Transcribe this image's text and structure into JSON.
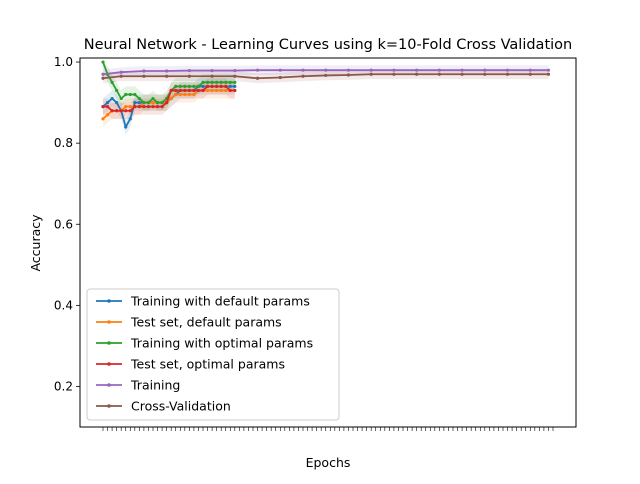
{
  "chart_data": {
    "type": "line",
    "title": "Neural Network - Learning Curves using k=10-Fold Cross Validation",
    "xlabel": "Epochs",
    "ylabel": "Accuracy",
    "xlim": [
      0,
      100
    ],
    "ylim": [
      0.1,
      1.01
    ],
    "yticks": [
      0.2,
      0.4,
      0.6,
      0.8,
      1.0
    ],
    "ytick_labels": [
      "0.2",
      "0.4",
      "0.6",
      "0.8",
      "1.0"
    ],
    "grid": false,
    "legend_position": "lower-left",
    "series": [
      {
        "name": "Training with default params",
        "color": "#1f77b4",
        "x": [
          1,
          2,
          3,
          4,
          5,
          6,
          7,
          8,
          9,
          10,
          11,
          12,
          13,
          14,
          15,
          16,
          17,
          18,
          19,
          20,
          21,
          22,
          23,
          24,
          25,
          26,
          27,
          28,
          29,
          30
        ],
        "y": [
          0.89,
          0.9,
          0.91,
          0.9,
          0.88,
          0.84,
          0.86,
          0.9,
          0.9,
          0.9,
          0.9,
          0.9,
          0.9,
          0.9,
          0.9,
          0.91,
          0.92,
          0.93,
          0.93,
          0.93,
          0.93,
          0.94,
          0.94,
          0.94,
          0.94,
          0.94,
          0.94,
          0.94,
          0.94,
          0.94
        ]
      },
      {
        "name": "Test set, default params",
        "color": "#ff7f0e",
        "x": [
          1,
          2,
          3,
          4,
          5,
          6,
          7,
          8,
          9,
          10,
          11,
          12,
          13,
          14,
          15,
          16,
          17,
          18,
          19,
          20,
          21,
          22,
          23,
          24,
          25,
          26,
          27,
          28,
          29,
          30
        ],
        "y": [
          0.86,
          0.87,
          0.88,
          0.88,
          0.88,
          0.89,
          0.89,
          0.89,
          0.89,
          0.9,
          0.9,
          0.9,
          0.9,
          0.9,
          0.9,
          0.91,
          0.92,
          0.92,
          0.92,
          0.92,
          0.92,
          0.93,
          0.93,
          0.93,
          0.93,
          0.93,
          0.93,
          0.93,
          0.93,
          0.93
        ]
      },
      {
        "name": "Training with optimal params",
        "color": "#2ca02c",
        "x": [
          1,
          2,
          3,
          4,
          5,
          6,
          7,
          8,
          9,
          10,
          11,
          12,
          13,
          14,
          15,
          16,
          17,
          18,
          19,
          20,
          21,
          22,
          23,
          24,
          25,
          26,
          27,
          28,
          29,
          30
        ],
        "y": [
          1.0,
          0.97,
          0.95,
          0.93,
          0.91,
          0.92,
          0.92,
          0.92,
          0.91,
          0.9,
          0.9,
          0.91,
          0.9,
          0.9,
          0.91,
          0.93,
          0.94,
          0.94,
          0.94,
          0.94,
          0.94,
          0.94,
          0.95,
          0.95,
          0.95,
          0.95,
          0.95,
          0.95,
          0.95,
          0.95
        ]
      },
      {
        "name": "Test set, optimal params",
        "color": "#d62728",
        "x": [
          1,
          2,
          3,
          4,
          5,
          6,
          7,
          8,
          9,
          10,
          11,
          12,
          13,
          14,
          15,
          16,
          17,
          18,
          19,
          20,
          21,
          22,
          23,
          24,
          25,
          26,
          27,
          28,
          29,
          30
        ],
        "y": [
          0.89,
          0.89,
          0.88,
          0.88,
          0.88,
          0.88,
          0.88,
          0.89,
          0.89,
          0.89,
          0.89,
          0.89,
          0.89,
          0.89,
          0.9,
          0.93,
          0.93,
          0.93,
          0.93,
          0.93,
          0.93,
          0.93,
          0.93,
          0.94,
          0.94,
          0.94,
          0.94,
          0.94,
          0.93,
          0.93
        ]
      },
      {
        "name": "Training",
        "color": "#9467bd",
        "x": [
          1,
          5,
          10,
          15,
          20,
          25,
          30,
          35,
          40,
          45,
          50,
          55,
          60,
          65,
          70,
          75,
          80,
          85,
          90,
          95,
          99
        ],
        "y": [
          0.97,
          0.975,
          0.978,
          0.978,
          0.979,
          0.979,
          0.979,
          0.98,
          0.98,
          0.98,
          0.98,
          0.98,
          0.98,
          0.98,
          0.98,
          0.98,
          0.98,
          0.98,
          0.98,
          0.98,
          0.98
        ]
      },
      {
        "name": "Cross-Validation",
        "color": "#8c564b",
        "x": [
          1,
          5,
          10,
          15,
          20,
          25,
          30,
          35,
          40,
          45,
          50,
          55,
          60,
          65,
          70,
          75,
          80,
          85,
          90,
          95,
          99
        ],
        "y": [
          0.96,
          0.965,
          0.965,
          0.965,
          0.965,
          0.965,
          0.965,
          0.96,
          0.962,
          0.965,
          0.967,
          0.968,
          0.97,
          0.97,
          0.97,
          0.97,
          0.97,
          0.97,
          0.97,
          0.97,
          0.97
        ]
      }
    ]
  }
}
